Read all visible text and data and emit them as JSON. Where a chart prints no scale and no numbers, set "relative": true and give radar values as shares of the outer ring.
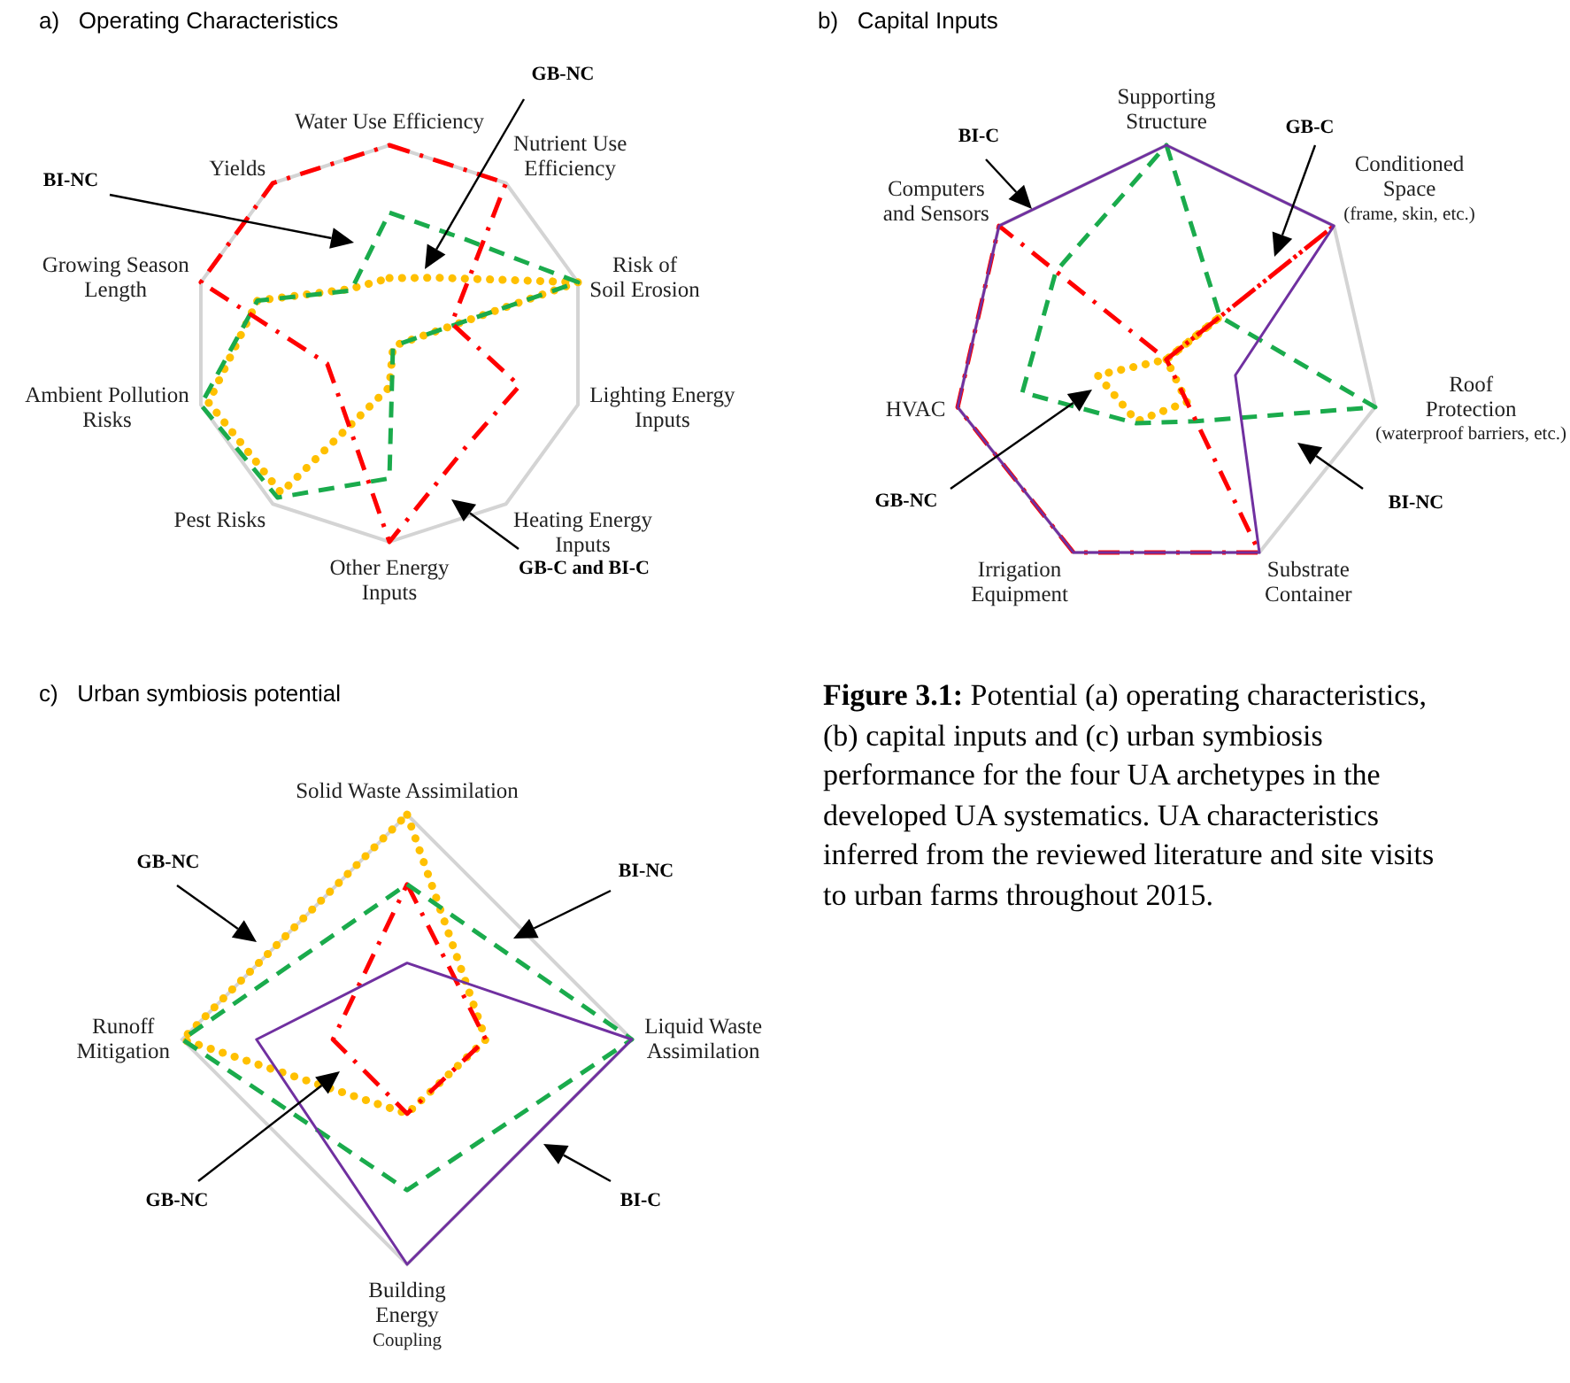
{
  "chart_data": [
    {
      "type": "radar",
      "title": "a)   Operating Characteristics",
      "relative": true,
      "grid": true,
      "categories": [
        "Water Use Efficiency",
        "Nutrient Use\nEfficiency",
        "Risk of\nSoil Erosion",
        "Lighting Energy\nInputs",
        "Heating Energy\nInputs",
        "Other Energy\nInputs",
        "Pest Risks",
        "Ambient Pollution\nRisks",
        "Growing Season\nLength",
        "Yields"
      ],
      "series": [
        {
          "color": "#ff0000",
          "line_style": "dashdot",
          "values": [
            1,
            1,
            0.33,
            0.69,
            0.65,
            1,
            0.4,
            0.33,
            1,
            1
          ]
        },
        {
          "color": "#1aab4c",
          "line_style": "dashed",
          "values": [
            0.66,
            0.65,
            1,
            0.03,
            0.03,
            0.68,
            0.96,
            1,
            0.7,
            0.33
          ]
        },
        {
          "color": "#ffc000",
          "line_style": "dotted",
          "values": [
            0.33,
            0.41,
            1,
            0.03,
            0.03,
            0.22,
            0.93,
            0.96,
            0.7,
            0.34
          ]
        }
      ],
      "annotations": [
        "GB-NC",
        "BI-NC",
        "GB-C and BI-C"
      ]
    },
    {
      "type": "radar",
      "title": "b)   Capital Inputs",
      "relative": true,
      "grid": true,
      "categories": [
        "Supporting\nStructure",
        "Conditioned\nSpace\n(frame, skin, etc.)",
        "Roof\nProtection\n(waterproof barriers, etc.)",
        "Substrate\nContainer",
        "Irrigation\nEquipment",
        "HVAC",
        "Computers\nand Sensors"
      ],
      "series": [
        {
          "color": "#7030a0",
          "line_style": "solid",
          "values": [
            1,
            1,
            0.33,
            1,
            1,
            1,
            1
          ]
        },
        {
          "color": "#ff0000",
          "line_style": "dashdot",
          "values": [
            0,
            1,
            0,
            1,
            1,
            1,
            1
          ]
        },
        {
          "color": "#1aab4c",
          "line_style": "dashed",
          "values": [
            1,
            0.32,
            1,
            0.32,
            0.33,
            0.69,
            0.66
          ]
        },
        {
          "color": "#ffc000",
          "line_style": "dotted",
          "values": [
            0,
            0.33,
            0,
            0.22,
            0.32,
            0.33,
            0
          ]
        }
      ],
      "annotations": [
        "BI-C",
        "GB-C",
        "GB-NC",
        "BI-NC"
      ]
    },
    {
      "type": "radar",
      "title": "c)   Urban symbiosis potential",
      "relative": true,
      "grid": true,
      "categories": [
        "Solid Waste Assimilation",
        "Liquid Waste\nAssimilation",
        "Building\nEnergy\nCoupling",
        "Runoff\nMitigation"
      ],
      "series": [
        {
          "color": "#7030a0",
          "line_style": "solid",
          "values": [
            0.34,
            1,
            1,
            0.67
          ]
        },
        {
          "color": "#1aab4c",
          "line_style": "dashed",
          "values": [
            0.69,
            1,
            0.67,
            1
          ]
        },
        {
          "color": "#ff0000",
          "line_style": "dashdot",
          "values": [
            0.69,
            0.35,
            0.33,
            0.33
          ]
        },
        {
          "color": "#ffc000",
          "line_style": "dotted",
          "values": [
            1,
            0.35,
            0.33,
            1
          ]
        }
      ],
      "annotations": [
        "GB-NC",
        "BI-NC",
        "GB-NC",
        "BI-C"
      ]
    },
    {
      "type": "other",
      "title": "Figure 3.1:",
      "subtitle": "Potential (a) operating characteristics, (b) capital inputs and (c) urban symbiosis performance for the four UA archetypes in the developed UA systematics. UA characteristics inferred from the reviewed literature and site visits to urban farms throughout 2015."
    }
  ]
}
